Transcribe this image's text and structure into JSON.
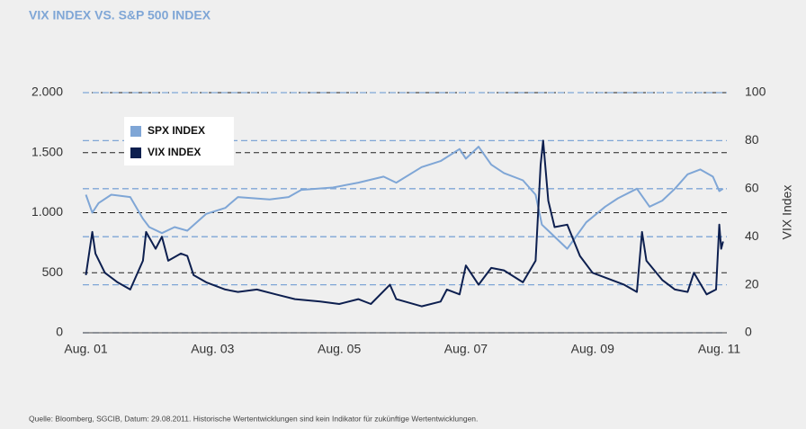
{
  "chart_data": {
    "type": "line",
    "title": "VIX INDEX VS. S&P 500 INDEX",
    "y2label": "VIX Index",
    "note": "Quelle:  Bloomberg, SGCIB, Datum: 29.08.2011. Historische Wertentwicklungen sind kein Indikator für zukünftige Wertentwicklungen.",
    "xlim": [
      2001.55,
      2011.72
    ],
    "xticks": [
      {
        "value": 2001.6,
        "label": "Aug. 01"
      },
      {
        "value": 2003.6,
        "label": "Aug. 03"
      },
      {
        "value": 2005.6,
        "label": "Aug. 05"
      },
      {
        "value": 2007.6,
        "label": "Aug. 07"
      },
      {
        "value": 2009.6,
        "label": "Aug. 09"
      },
      {
        "value": 2011.6,
        "label": "Aug. 11"
      }
    ],
    "ylim": [
      0,
      2000
    ],
    "yticks": [
      0,
      500,
      {
        "value": 1000,
        "label": "1.000"
      },
      {
        "value": 1500,
        "label": "1.500"
      },
      {
        "value": 2000,
        "label": "2.000"
      }
    ],
    "y2lim": [
      0,
      100
    ],
    "y2ticks": [
      0,
      20,
      40,
      60,
      80,
      100
    ],
    "grid": true,
    "legend": "upper left",
    "series": [
      {
        "name": "SPX INDEX",
        "color": "#7fa6d6",
        "axis": "y",
        "x": [
          2001.6,
          2001.7,
          2001.8,
          2002.0,
          2002.3,
          2002.5,
          2002.6,
          2002.8,
          2003.0,
          2003.2,
          2003.5,
          2003.8,
          2004.0,
          2004.5,
          2004.8,
          2005.0,
          2005.5,
          2005.9,
          2006.3,
          2006.5,
          2006.9,
          2007.2,
          2007.5,
          2007.6,
          2007.8,
          2008.0,
          2008.2,
          2008.5,
          2008.7,
          2008.8,
          2008.9,
          2009.2,
          2009.5,
          2009.8,
          2010.0,
          2010.3,
          2010.5,
          2010.7,
          2010.9,
          2011.1,
          2011.3,
          2011.5,
          2011.6,
          2011.66
        ],
        "values": [
          1150,
          1000,
          1080,
          1150,
          1130,
          950,
          880,
          830,
          880,
          850,
          990,
          1040,
          1130,
          1110,
          1130,
          1190,
          1210,
          1250,
          1300,
          1250,
          1380,
          1430,
          1530,
          1450,
          1550,
          1400,
          1330,
          1270,
          1150,
          900,
          850,
          700,
          920,
          1050,
          1120,
          1200,
          1050,
          1100,
          1200,
          1320,
          1360,
          1300,
          1180,
          1200
        ]
      },
      {
        "name": "VIX INDEX",
        "color": "#0d1f4f",
        "axis": "y2",
        "x": [
          2001.6,
          2001.7,
          2001.75,
          2001.9,
          2002.1,
          2002.3,
          2002.5,
          2002.55,
          2002.7,
          2002.8,
          2002.9,
          2003.1,
          2003.2,
          2003.3,
          2003.5,
          2003.8,
          2004.0,
          2004.3,
          2004.6,
          2004.9,
          2005.3,
          2005.6,
          2005.9,
          2006.1,
          2006.4,
          2006.5,
          2006.9,
          2007.2,
          2007.3,
          2007.5,
          2007.6,
          2007.8,
          2008.0,
          2008.2,
          2008.5,
          2008.7,
          2008.78,
          2008.82,
          2008.9,
          2009.0,
          2009.2,
          2009.4,
          2009.6,
          2009.9,
          2010.1,
          2010.3,
          2010.38,
          2010.45,
          2010.7,
          2010.9,
          2011.1,
          2011.2,
          2011.4,
          2011.55,
          2011.6,
          2011.63,
          2011.66
        ],
        "values": [
          24,
          42,
          33,
          25,
          21,
          18,
          30,
          42,
          35,
          40,
          30,
          33,
          32,
          24,
          21,
          18,
          17,
          18,
          16,
          14,
          13,
          12,
          14,
          12,
          20,
          14,
          11,
          13,
          18,
          16,
          28,
          20,
          27,
          26,
          21,
          30,
          70,
          80,
          55,
          44,
          45,
          32,
          25,
          22,
          20,
          17,
          42,
          30,
          22,
          18,
          17,
          25,
          16,
          18,
          45,
          35,
          38
        ]
      }
    ]
  }
}
